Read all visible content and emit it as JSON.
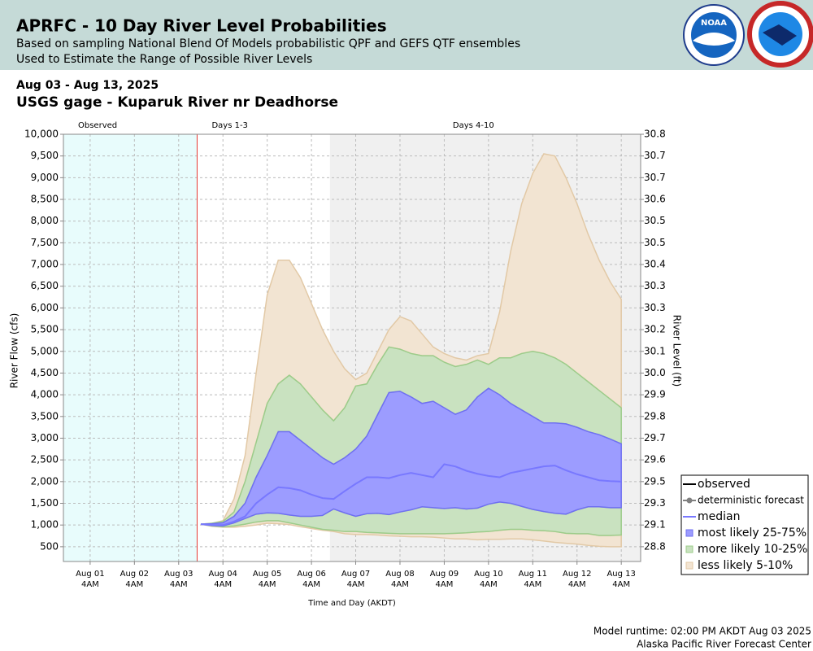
{
  "header": {
    "title": "APRFC - 10 Day River Level Probabilities",
    "subtitle_1": "Based on sampling National Blend Of Models probabilistic QPF and GEFS QTF ensembles",
    "subtitle_2": "Used to Estimate the Range of Possible River Levels",
    "logo": "NOAA"
  },
  "chart_data": {
    "type": "band",
    "date_range": "Aug 03 - Aug 13, 2025",
    "title": "USGS gage - Kuparuk River nr Deadhorse",
    "y_label": "River Flow (cfs)",
    "y2_label": "River Level (ft)",
    "x_label": "Time and Day (AKDT)",
    "xlim": [
      "2025-07-31T13:30",
      "2025-08-13T14:30"
    ],
    "xticks": [
      {
        "value": "2025-08-01T04:00",
        "label": [
          "Aug 01",
          "4AM"
        ]
      },
      {
        "value": "2025-08-02T04:00",
        "label": [
          "Aug 02",
          "4AM"
        ]
      },
      {
        "value": "2025-08-03T04:00",
        "label": [
          "Aug 03",
          "4AM"
        ]
      },
      {
        "value": "2025-08-04T04:00",
        "label": [
          "Aug 04",
          "4AM"
        ]
      },
      {
        "value": "2025-08-05T04:00",
        "label": [
          "Aug 05",
          "4AM"
        ]
      },
      {
        "value": "2025-08-06T04:00",
        "label": [
          "Aug 06",
          "4AM"
        ]
      },
      {
        "value": "2025-08-07T04:00",
        "label": [
          "Aug 07",
          "4AM"
        ]
      },
      {
        "value": "2025-08-08T04:00",
        "label": [
          "Aug 08",
          "4AM"
        ]
      },
      {
        "value": "2025-08-09T04:00",
        "label": [
          "Aug 09",
          "4AM"
        ]
      },
      {
        "value": "2025-08-10T04:00",
        "label": [
          "Aug 10",
          "4AM"
        ]
      },
      {
        "value": "2025-08-11T04:00",
        "label": [
          "Aug 11",
          "4AM"
        ]
      },
      {
        "value": "2025-08-12T04:00",
        "label": [
          "Aug 12",
          "4AM"
        ]
      },
      {
        "value": "2025-08-13T04:00",
        "label": [
          "Aug 13",
          "4AM"
        ]
      }
    ],
    "ylim": [
      160,
      10000
    ],
    "yticks": [
      {
        "value": 500,
        "label": "500"
      },
      {
        "value": 1000,
        "label": "1,000"
      },
      {
        "value": 1500,
        "label": "1,500"
      },
      {
        "value": 2000,
        "label": "2,000"
      },
      {
        "value": 2500,
        "label": "2,500"
      },
      {
        "value": 3000,
        "label": "3,000"
      },
      {
        "value": 3500,
        "label": "3,500"
      },
      {
        "value": 4000,
        "label": "4,000"
      },
      {
        "value": 4500,
        "label": "4,500"
      },
      {
        "value": 5000,
        "label": "5,000"
      },
      {
        "value": 5500,
        "label": "5,500"
      },
      {
        "value": 6000,
        "label": "6,000"
      },
      {
        "value": 6500,
        "label": "6,500"
      },
      {
        "value": 7000,
        "label": "7,000"
      },
      {
        "value": 7500,
        "label": "7,500"
      },
      {
        "value": 8000,
        "label": "8,000"
      },
      {
        "value": 8500,
        "label": "8,500"
      },
      {
        "value": 9000,
        "label": "9,000"
      },
      {
        "value": 9500,
        "label": "9,500"
      },
      {
        "value": 10000,
        "label": "10,000"
      }
    ],
    "y2tick_labels": [
      "28.8",
      "29.1",
      "29.3",
      "29.5",
      "29.6",
      "29.7",
      "29.8",
      "29.9",
      "30.0",
      "30.1",
      "30.2",
      "30.3",
      "30.3",
      "30.4",
      "30.5",
      "30.5",
      "30.6",
      "30.7",
      "30.7",
      "30.8"
    ],
    "grid": true,
    "periods": [
      {
        "label": "Observed",
        "start": "2025-07-31T13:30",
        "end": "2025-08-03T14:00",
        "color": "#e8fcfc"
      },
      {
        "label": "Days 1-3",
        "start": "2025-08-03T14:00",
        "end": "2025-08-06T14:00",
        "color": "#ffffff"
      },
      {
        "label": "Days 4-10",
        "start": "2025-08-06T14:00",
        "end": "2025-08-13T14:30",
        "color": "#f0f0f0"
      }
    ],
    "forecast_start": "2025-08-03T14:00",
    "x_start": "2025-08-03T16:00",
    "x_step_hours": 6,
    "percentile_series": [
      {
        "values": [
          1020,
          970,
          950,
          950,
          970,
          1000,
          1040,
          1030,
          1010,
          960,
          920,
          880,
          850,
          800,
          780,
          780,
          770,
          750,
          740,
          730,
          730,
          720,
          700,
          680,
          680,
          660,
          670,
          670,
          680,
          680,
          660,
          630,
          600,
          580,
          560,
          530,
          510,
          500,
          500
        ]
      },
      {
        "values": [
          1020,
          980,
          960,
          980,
          1020,
          1070,
          1100,
          1100,
          1050,
          1000,
          950,
          900,
          880,
          850,
          850,
          830,
          820,
          810,
          800,
          800,
          800,
          800,
          800,
          810,
          820,
          840,
          850,
          880,
          900,
          900,
          880,
          870,
          850,
          810,
          800,
          800,
          760,
          760,
          770
        ]
      },
      {
        "values": [
          1020,
          990,
          980,
          1050,
          1150,
          1250,
          1280,
          1270,
          1230,
          1200,
          1200,
          1220,
          1370,
          1280,
          1200,
          1260,
          1270,
          1240,
          1300,
          1350,
          1420,
          1400,
          1380,
          1400,
          1370,
          1390,
          1480,
          1530,
          1500,
          1430,
          1360,
          1310,
          1270,
          1250,
          1350,
          1420,
          1420,
          1400,
          1400
        ]
      },
      {
        "values": [
          1020,
          1000,
          1000,
          1080,
          1200,
          1500,
          1700,
          1870,
          1850,
          1800,
          1700,
          1620,
          1600,
          1780,
          1950,
          2100,
          2100,
          2080,
          2150,
          2200,
          2150,
          2100,
          2400,
          2350,
          2250,
          2180,
          2130,
          2100,
          2200,
          2250,
          2300,
          2350,
          2370,
          2260,
          2170,
          2100,
          2030,
          2010,
          2000
        ]
      },
      {
        "values": [
          1020,
          1030,
          1050,
          1200,
          1500,
          2100,
          2600,
          3150,
          3150,
          2950,
          2750,
          2550,
          2400,
          2550,
          2750,
          3050,
          3550,
          4050,
          4080,
          3950,
          3800,
          3850,
          3700,
          3550,
          3650,
          3950,
          4150,
          4000,
          3800,
          3650,
          3500,
          3350,
          3350,
          3330,
          3250,
          3150,
          3080,
          2980,
          2870
        ]
      },
      {
        "values": [
          1020,
          1040,
          1080,
          1300,
          2000,
          2900,
          3800,
          4250,
          4450,
          4250,
          3950,
          3650,
          3400,
          3700,
          4200,
          4250,
          4700,
          5100,
          5050,
          4950,
          4900,
          4900,
          4750,
          4650,
          4700,
          4800,
          4700,
          4850,
          4850,
          4950,
          5000,
          4950,
          4850,
          4700,
          4500,
          4300,
          4100,
          3900,
          3700
        ]
      },
      {
        "values": [
          1020,
          1040,
          1100,
          1600,
          2600,
          4500,
          6300,
          7100,
          7100,
          6700,
          6100,
          5500,
          5000,
          4600,
          4350,
          4500,
          5000,
          5500,
          5800,
          5700,
          5400,
          5100,
          4950,
          4850,
          4800,
          4900,
          4950,
          5900,
          7300,
          8400,
          9100,
          9550,
          9500,
          9000,
          8400,
          7700,
          7100,
          6600,
          6200
        ]
      }
    ],
    "legend": [
      {
        "name": "observed",
        "color": "#000000",
        "style": "line"
      },
      {
        "name": "deterministic forecast",
        "color": "#808080",
        "style": "marker"
      },
      {
        "name": "median",
        "color": "#7878ff",
        "style": "line"
      },
      {
        "name": "most likely 25-75%",
        "color": "#9c9cff",
        "edge": "#6f6ff2",
        "style": "band"
      },
      {
        "name": "more likely 10-25%",
        "color": "#c9e2c0",
        "edge": "#9ccc8a",
        "style": "band"
      },
      {
        "name": "less likely 5-10%",
        "color": "#f2e4d2",
        "edge": "#e2c9a6",
        "style": "band"
      }
    ]
  },
  "footer": {
    "runtime": "Model runtime: 02:00 PM AKDT Aug 03 2025",
    "center": "Alaska Pacific River Forecast Center"
  }
}
